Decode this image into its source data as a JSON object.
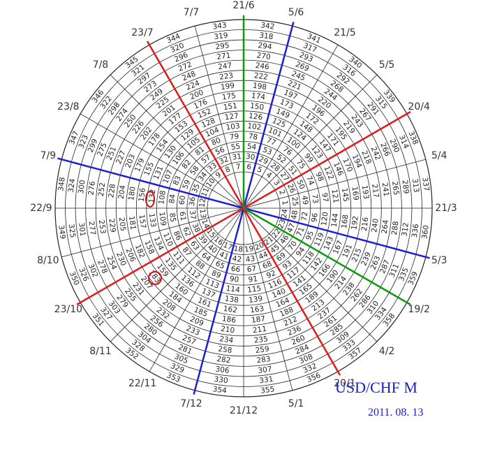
{
  "wheel": {
    "dates": [
      "21/3",
      "5/4",
      "20/4",
      "5/5",
      "21/5",
      "5/6",
      "21/6",
      "7/7",
      "23/7",
      "7/8",
      "23/8",
      "7/9",
      "22/9",
      "8/10",
      "23/10",
      "8/11",
      "22/11",
      "7/12",
      "21/12",
      "5/1",
      "20/1",
      "4/2",
      "19/2",
      "5/3"
    ],
    "rings": [
      [
        1,
        2,
        3,
        4,
        5,
        6,
        7,
        8,
        9,
        10,
        11,
        12,
        13,
        14,
        15,
        16,
        17,
        18,
        19,
        20,
        21,
        22,
        23,
        24
      ],
      [
        25,
        26,
        27,
        28,
        29,
        30,
        31,
        32,
        33,
        34,
        35,
        36,
        37,
        38,
        39,
        40,
        41,
        42,
        43,
        44,
        45,
        46,
        47,
        48
      ],
      [
        49,
        50,
        51,
        52,
        53,
        54,
        55,
        56,
        57,
        58,
        59,
        60,
        61,
        62,
        63,
        64,
        65,
        66,
        67,
        68,
        69,
        70,
        71,
        72
      ],
      [
        73,
        74,
        75,
        76,
        77,
        78,
        79,
        80,
        81,
        82,
        83,
        84,
        85,
        86,
        87,
        88,
        89,
        90,
        91,
        92,
        93,
        94,
        95,
        96
      ],
      [
        97,
        98,
        99,
        100,
        101,
        102,
        103,
        104,
        105,
        106,
        107,
        108,
        109,
        110,
        111,
        112,
        113,
        114,
        115,
        116,
        117,
        118,
        119,
        120
      ],
      [
        121,
        122,
        123,
        124,
        125,
        126,
        127,
        128,
        129,
        130,
        131,
        132,
        133,
        134,
        135,
        136,
        137,
        138,
        139,
        140,
        141,
        142,
        143,
        144
      ],
      [
        145,
        146,
        147,
        148,
        149,
        150,
        151,
        152,
        153,
        154,
        155,
        156,
        157,
        158,
        159,
        160,
        161,
        162,
        163,
        164,
        165,
        166,
        167,
        168
      ],
      [
        169,
        170,
        171,
        172,
        173,
        174,
        175,
        176,
        177,
        178,
        179,
        180,
        181,
        182,
        183,
        184,
        185,
        186,
        187,
        188,
        189,
        190,
        191,
        192
      ],
      [
        193,
        194,
        195,
        196,
        197,
        198,
        199,
        200,
        201,
        202,
        203,
        204,
        205,
        206,
        207,
        208,
        209,
        210,
        211,
        212,
        213,
        214,
        215,
        216
      ],
      [
        217,
        218,
        219,
        220,
        221,
        222,
        223,
        224,
        225,
        226,
        227,
        228,
        229,
        230,
        231,
        232,
        233,
        234,
        235,
        236,
        237,
        238,
        239,
        240
      ],
      [
        241,
        242,
        243,
        244,
        245,
        246,
        247,
        248,
        249,
        250,
        251,
        252,
        253,
        254,
        255,
        256,
        257,
        258,
        259,
        260,
        261,
        262,
        263,
        264
      ],
      [
        265,
        266,
        267,
        268,
        269,
        270,
        271,
        272,
        273,
        274,
        275,
        276,
        277,
        278,
        279,
        280,
        281,
        282,
        283,
        284,
        285,
        286,
        287,
        288
      ],
      [
        289,
        290,
        291,
        292,
        293,
        294,
        295,
        296,
        297,
        298,
        299,
        300,
        301,
        302,
        303,
        304,
        305,
        306,
        307,
        308,
        309,
        310,
        311,
        312
      ],
      [
        313,
        314,
        315,
        316,
        317,
        318,
        319,
        320,
        321,
        322,
        323,
        324,
        325,
        326,
        327,
        328,
        329,
        330,
        331,
        332,
        333,
        334,
        335,
        336
      ],
      [
        337,
        338,
        339,
        340,
        341,
        342,
        343,
        344,
        345,
        346,
        347,
        348,
        349,
        350,
        351,
        352,
        353,
        354,
        355,
        356,
        357,
        358,
        359,
        360
      ]
    ]
  },
  "label": {
    "pair": "USD/CHF  M",
    "date": "2011. 08. 13"
  }
}
